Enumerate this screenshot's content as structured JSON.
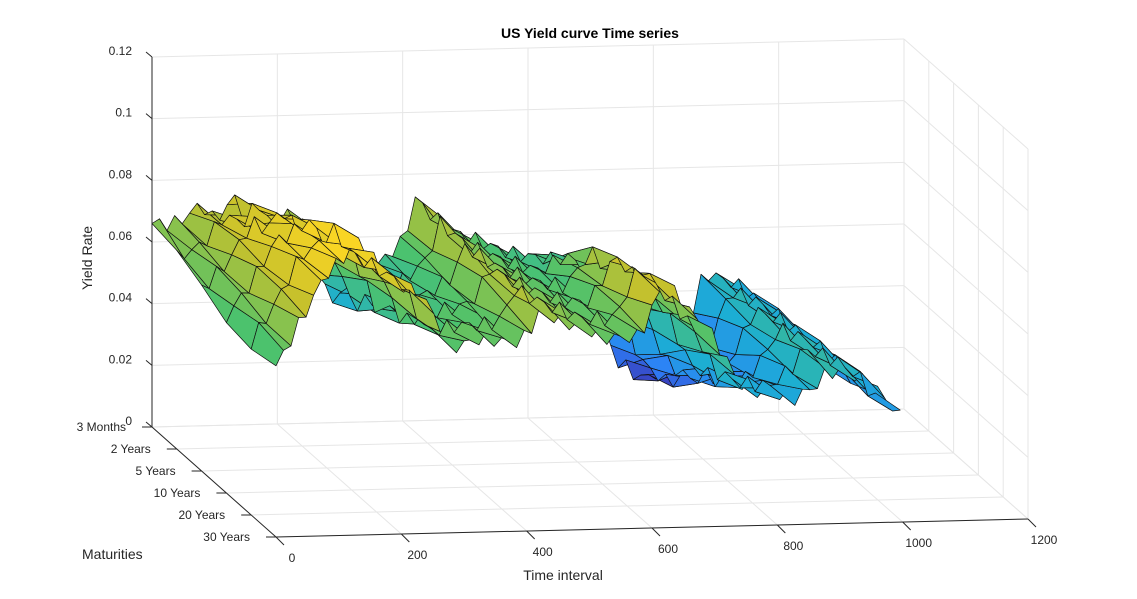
{
  "chart_data": {
    "type": "surface",
    "title": "US Yield curve Time series",
    "xlabel": "Time interval",
    "ylabel": "Maturities",
    "zlabel": "Yield Rate",
    "xlim": [
      0,
      1200
    ],
    "x_ticks": [
      "0",
      "200",
      "400",
      "600",
      "800",
      "1000",
      "1200"
    ],
    "y_ticks": [
      "3 Months",
      "2 Years",
      "5 Years",
      "10 Years",
      "20 Years",
      "30 Years"
    ],
    "zlim": [
      0,
      0.12
    ],
    "z_ticks": [
      "0",
      "0.02",
      "0.04",
      "0.06",
      "0.08",
      "0.1",
      "0.12"
    ],
    "grid": true,
    "colormap": [
      "#3e26a8",
      "#2d80f8",
      "#1caed4",
      "#4cc26d",
      "#c7c12c",
      "#f9d524"
    ],
    "clim": [
      0.01,
      0.09
    ],
    "series_approx": [
      {
        "x": 0,
        "levels": [
          0.066,
          0.062,
          0.059,
          0.057,
          0.056,
          0.055
        ]
      },
      {
        "x": 40,
        "levels": [
          0.066,
          0.066,
          0.067,
          0.068,
          0.069,
          0.07
        ]
      },
      {
        "x": 80,
        "levels": [
          0.072,
          0.076,
          0.08,
          0.082,
          0.084,
          0.085
        ]
      },
      {
        "x": 100,
        "levels": [
          0.066,
          0.072,
          0.078,
          0.083,
          0.086,
          0.088
        ]
      },
      {
        "x": 130,
        "levels": [
          0.074,
          0.079,
          0.084,
          0.088,
          0.092,
          0.096
        ]
      },
      {
        "x": 160,
        "levels": [
          0.064,
          0.07,
          0.075,
          0.08,
          0.084,
          0.088
        ]
      },
      {
        "x": 200,
        "levels": [
          0.068,
          0.071,
          0.074,
          0.077,
          0.079,
          0.081
        ]
      },
      {
        "x": 240,
        "levels": [
          0.066,
          0.068,
          0.07,
          0.072,
          0.074,
          0.075
        ]
      },
      {
        "x": 280,
        "levels": [
          0.04,
          0.045,
          0.05,
          0.054,
          0.058,
          0.06
        ]
      },
      {
        "x": 330,
        "levels": [
          0.044,
          0.048,
          0.053,
          0.057,
          0.06,
          0.063
        ]
      },
      {
        "x": 380,
        "levels": [
          0.055,
          0.056,
          0.058,
          0.059,
          0.06,
          0.061
        ]
      },
      {
        "x": 400,
        "levels": [
          0.058,
          0.06,
          0.061,
          0.062,
          0.062,
          0.063
        ]
      },
      {
        "x": 420,
        "levels": [
          0.072,
          0.071,
          0.071,
          0.071,
          0.071,
          0.071
        ]
      },
      {
        "x": 470,
        "levels": [
          0.062,
          0.063,
          0.064,
          0.065,
          0.066,
          0.067
        ]
      },
      {
        "x": 530,
        "levels": [
          0.057,
          0.058,
          0.059,
          0.06,
          0.061,
          0.062
        ]
      },
      {
        "x": 580,
        "levels": [
          0.053,
          0.055,
          0.057,
          0.059,
          0.061,
          0.062
        ]
      },
      {
        "x": 620,
        "levels": [
          0.052,
          0.06,
          0.068,
          0.074,
          0.078,
          0.08
        ]
      },
      {
        "x": 660,
        "levels": [
          0.05,
          0.054,
          0.06,
          0.065,
          0.068,
          0.07
        ]
      },
      {
        "x": 700,
        "levels": [
          0.04,
          0.046,
          0.052,
          0.056,
          0.059,
          0.061
        ]
      },
      {
        "x": 740,
        "levels": [
          0.018,
          0.025,
          0.032,
          0.038,
          0.043,
          0.046
        ]
      },
      {
        "x": 780,
        "levels": [
          0.012,
          0.018,
          0.026,
          0.033,
          0.039,
          0.043
        ]
      },
      {
        "x": 830,
        "levels": [
          0.015,
          0.02,
          0.027,
          0.033,
          0.038,
          0.041
        ]
      },
      {
        "x": 870,
        "levels": [
          0.038,
          0.04,
          0.042,
          0.044,
          0.045,
          0.046
        ]
      },
      {
        "x": 880,
        "levels": [
          0.046,
          0.047,
          0.048,
          0.049,
          0.05,
          0.05
        ]
      },
      {
        "x": 930,
        "levels": [
          0.042,
          0.043,
          0.044,
          0.045,
          0.046,
          0.047
        ]
      },
      {
        "x": 970,
        "levels": [
          0.036,
          0.037,
          0.038,
          0.039,
          0.04,
          0.041
        ]
      },
      {
        "x": 1000,
        "levels": [
          0.028,
          0.029,
          0.03,
          0.031,
          0.032,
          0.033
        ]
      }
    ]
  }
}
